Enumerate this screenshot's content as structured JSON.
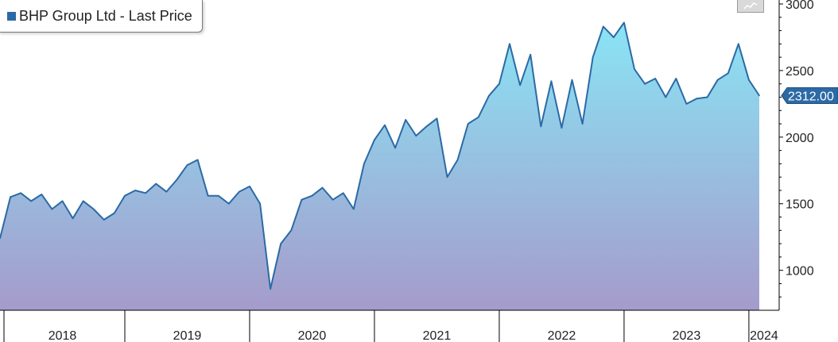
{
  "legend": {
    "label": "BHP Group Ltd - Last Price"
  },
  "last_price_label": "2312.00",
  "colors": {
    "line": "#2c6aa5",
    "fill_top": "#8ae4f5",
    "fill_bottom": "#a59bcb",
    "label_bg": "#2c6aa5"
  },
  "chart_data": {
    "type": "area",
    "series": [
      {
        "name": "BHP Group Ltd - Last Price",
        "x": [
          "2018-01",
          "2018-02",
          "2018-03",
          "2018-04",
          "2018-05",
          "2018-06",
          "2018-07",
          "2018-08",
          "2018-09",
          "2018-10",
          "2018-11",
          "2018-12",
          "2019-01",
          "2019-02",
          "2019-03",
          "2019-04",
          "2019-05",
          "2019-06",
          "2019-07",
          "2019-08",
          "2019-09",
          "2019-10",
          "2019-11",
          "2019-12",
          "2020-01",
          "2020-02",
          "2020-03",
          "2020-04",
          "2020-05",
          "2020-06",
          "2020-07",
          "2020-08",
          "2020-09",
          "2020-10",
          "2020-11",
          "2020-12",
          "2021-01",
          "2021-02",
          "2021-03",
          "2021-04",
          "2021-05",
          "2021-06",
          "2021-07",
          "2021-08",
          "2021-09",
          "2021-10",
          "2021-11",
          "2021-12",
          "2022-01",
          "2022-02",
          "2022-03",
          "2022-04",
          "2022-05",
          "2022-06",
          "2022-07",
          "2022-08",
          "2022-09",
          "2022-10",
          "2022-11",
          "2022-12",
          "2023-01",
          "2023-02",
          "2023-03",
          "2023-04",
          "2023-05",
          "2023-06",
          "2023-07",
          "2023-08",
          "2023-09",
          "2023-10",
          "2023-11",
          "2023-12",
          "2024-01",
          "2024-02"
        ],
        "values": [
          1240,
          1550,
          1580,
          1520,
          1570,
          1460,
          1520,
          1390,
          1520,
          1460,
          1380,
          1430,
          1560,
          1600,
          1580,
          1650,
          1590,
          1680,
          1790,
          1830,
          1560,
          1560,
          1500,
          1590,
          1630,
          1500,
          860,
          1200,
          1300,
          1530,
          1560,
          1620,
          1530,
          1580,
          1460,
          1800,
          1980,
          2090,
          1920,
          2130,
          2010,
          2080,
          2140,
          1700,
          1830,
          2100,
          2150,
          2310,
          2400,
          2700,
          2390,
          2620,
          2080,
          2420,
          2070,
          2430,
          2100,
          2600,
          2830,
          2750,
          2860,
          2510,
          2400,
          2440,
          2300,
          2440,
          2250,
          2290,
          2300,
          2430,
          2480,
          2700,
          2430,
          2312
        ]
      }
    ],
    "ylim": [
      700,
      3000
    ],
    "y_ticks": [
      1000,
      1500,
      2000,
      2500,
      3000
    ],
    "x_tick_labels": [
      "2018",
      "2019",
      "2020",
      "2021",
      "2022",
      "2023",
      "2024"
    ],
    "last_value": 2312.0,
    "grid": false,
    "legend_position": "top-left"
  }
}
